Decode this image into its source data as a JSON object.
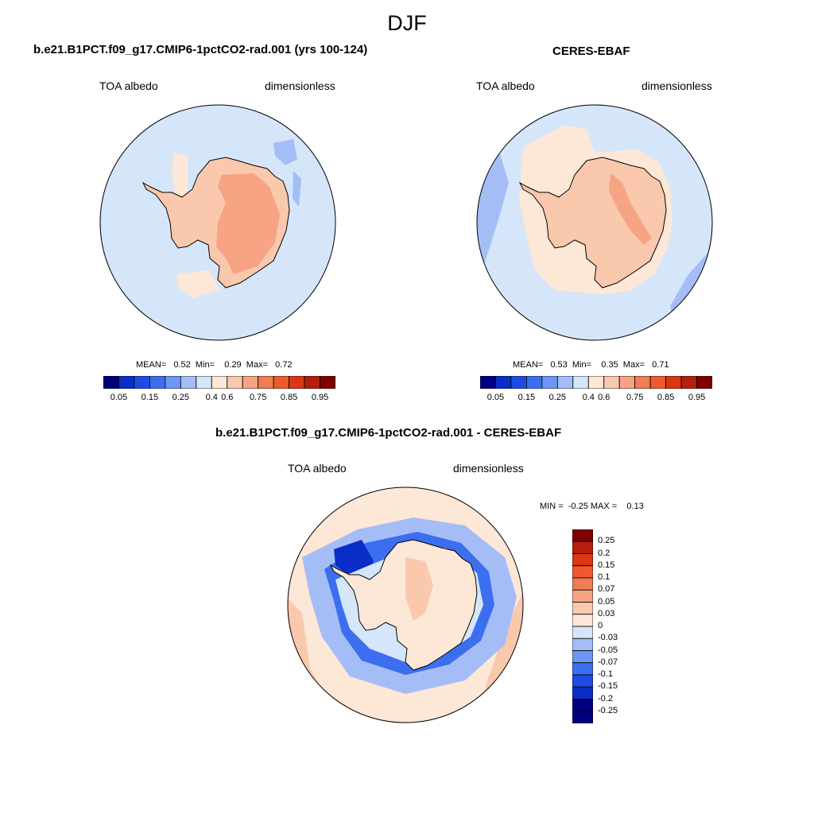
{
  "season": "DJF",
  "panels": [
    {
      "title": "b.e21.B1PCT.f09_g17.CMIP6-1pctCO2-rad.001 (yrs 100-124)",
      "left_label": "TOA albedo",
      "right_label": "dimensionless",
      "stats": "MEAN=   0.52  Min=    0.29  Max=   0.72"
    },
    {
      "title": "CERES-EBAF",
      "left_label": "TOA albedo",
      "right_label": "dimensionless",
      "stats": "MEAN=   0.53  Min=    0.35  Max=   0.71"
    },
    {
      "title": "b.e21.B1PCT.f09_g17.CMIP6-1pctCO2-rad.001 - CERES-EBAF",
      "left_label": "TOA albedo",
      "right_label": "dimensionless",
      "stats": "MIN =  -0.25 MAX =    0.13"
    }
  ],
  "colorbar_h": {
    "colors": [
      "#00007f",
      "#0a2dc8",
      "#1e4be6",
      "#3c6ef0",
      "#6e96f5",
      "#a5bdf7",
      "#d6e6fa",
      "#fde7d6",
      "#f9c8ad",
      "#f6a483",
      "#f07d53",
      "#ee5a2e",
      "#dc3614",
      "#b51e0a",
      "#800000"
    ],
    "labels": [
      "0.05",
      "0.15",
      "0.25",
      "0.4",
      "0.6",
      "0.75",
      "0.85",
      "0.95"
    ]
  },
  "colorbar_v": {
    "colors": [
      "#800000",
      "#b51e0a",
      "#dc3614",
      "#ee5a2e",
      "#f07d53",
      "#f6a483",
      "#f9c8ad",
      "#fde7d6",
      "#d6e6fa",
      "#a5bdf7",
      "#6e96f5",
      "#3c6ef0",
      "#1e4be6",
      "#0a2dc8",
      "#00007f"
    ],
    "labels": [
      "0.25",
      "0.2",
      "0.15",
      "0.1",
      "0.07",
      "0.05",
      "0.03",
      "0",
      "-0.03",
      "-0.05",
      "-0.07",
      "-0.1",
      "-0.15",
      "-0.2",
      "-0.25"
    ]
  }
}
